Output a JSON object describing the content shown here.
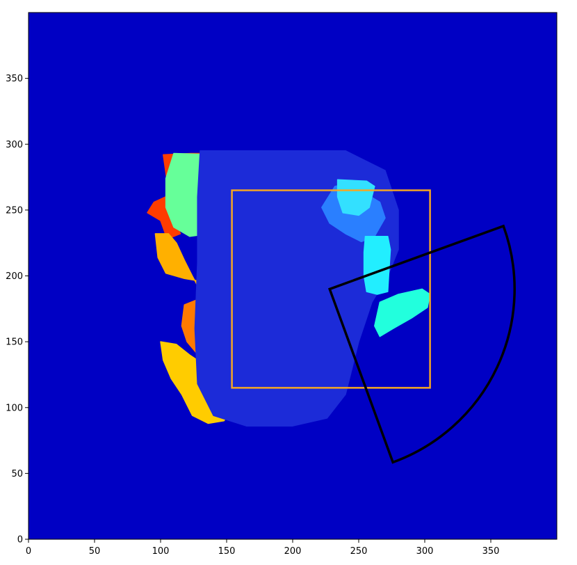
{
  "chart_data": {
    "type": "heatmap",
    "title": "",
    "xlabel": "",
    "ylabel": "",
    "xlim": [
      0,
      400
    ],
    "ylim": [
      0,
      400
    ],
    "x_ticks": [
      0,
      50,
      100,
      150,
      200,
      250,
      300,
      350
    ],
    "y_ticks": [
      0,
      50,
      100,
      150,
      200,
      250,
      300,
      350
    ],
    "colormap": "jet",
    "background_color": "#0000c4",
    "grid": false,
    "regions": [
      {
        "name": "chair-back",
        "points": [
          [
            102,
            292
          ],
          [
            123,
            293
          ],
          [
            148,
            293
          ],
          [
            155,
            280
          ],
          [
            152,
            262
          ],
          [
            140,
            252
          ],
          [
            132,
            256
          ],
          [
            118,
            250
          ],
          [
            108,
            262
          ],
          [
            95,
            256
          ],
          [
            90,
            248
          ],
          [
            100,
            242
          ],
          [
            105,
            228
          ],
          [
            115,
            232
          ],
          [
            108,
            250
          ]
        ],
        "color": "#ff3c00"
      },
      {
        "name": "seat-top",
        "points": [
          [
            110,
            293
          ],
          [
            146,
            292
          ],
          [
            152,
            282
          ],
          [
            151,
            262
          ],
          [
            146,
            245
          ],
          [
            137,
            232
          ],
          [
            122,
            230
          ],
          [
            110,
            237
          ],
          [
            104,
            252
          ],
          [
            104,
            274
          ]
        ],
        "color": "#66ff99"
      },
      {
        "name": "chair-column",
        "points": [
          [
            96,
            232
          ],
          [
            106,
            232
          ],
          [
            112,
            225
          ],
          [
            118,
            212
          ],
          [
            124,
            200
          ],
          [
            132,
            185
          ],
          [
            142,
            178
          ],
          [
            152,
            186
          ],
          [
            163,
            192
          ],
          [
            170,
            198
          ],
          [
            160,
            202
          ],
          [
            146,
            198
          ],
          [
            130,
            196
          ],
          [
            118,
            198
          ],
          [
            104,
            202
          ],
          [
            98,
            214
          ]
        ],
        "color": "#ffb000"
      },
      {
        "name": "orange-seat",
        "points": [
          [
            118,
            178
          ],
          [
            138,
            186
          ],
          [
            160,
            184
          ],
          [
            172,
            172
          ],
          [
            178,
            160
          ],
          [
            176,
            150
          ],
          [
            168,
            140
          ],
          [
            158,
            125
          ],
          [
            150,
            122
          ],
          [
            140,
            130
          ],
          [
            130,
            138
          ],
          [
            120,
            150
          ],
          [
            116,
            162
          ]
        ],
        "color": "#ff7a00"
      },
      {
        "name": "lower-legs",
        "points": [
          [
            100,
            150
          ],
          [
            112,
            148
          ],
          [
            122,
            140
          ],
          [
            134,
            132
          ],
          [
            142,
            122
          ],
          [
            150,
            112
          ],
          [
            154,
            100
          ],
          [
            148,
            90
          ],
          [
            136,
            88
          ],
          [
            124,
            94
          ],
          [
            116,
            110
          ],
          [
            108,
            122
          ],
          [
            102,
            136
          ]
        ],
        "color": "#ffcc00"
      },
      {
        "name": "dim-box",
        "points": [
          [
            130,
            295
          ],
          [
            240,
            295
          ],
          [
            270,
            280
          ],
          [
            280,
            250
          ],
          [
            280,
            220
          ],
          [
            272,
            200
          ],
          [
            260,
            180
          ],
          [
            250,
            150
          ],
          [
            240,
            110
          ],
          [
            226,
            92
          ],
          [
            200,
            86
          ],
          [
            165,
            86
          ],
          [
            140,
            94
          ],
          [
            128,
            118
          ],
          [
            126,
            160
          ],
          [
            128,
            210
          ],
          [
            128,
            260
          ]
        ],
        "color": "#1c2bd8"
      },
      {
        "name": "blue-object",
        "points": [
          [
            222,
            252
          ],
          [
            232,
            268
          ],
          [
            244,
            270
          ],
          [
            256,
            262
          ],
          [
            266,
            256
          ],
          [
            270,
            244
          ],
          [
            262,
            230
          ],
          [
            252,
            226
          ],
          [
            240,
            232
          ],
          [
            228,
            240
          ]
        ],
        "color": "#2a7fff"
      },
      {
        "name": "small-cyan-box",
        "points": [
          [
            234,
            273
          ],
          [
            256,
            272
          ],
          [
            262,
            268
          ],
          [
            258,
            252
          ],
          [
            250,
            246
          ],
          [
            238,
            248
          ],
          [
            234,
            260
          ]
        ],
        "color": "#33e0ff"
      },
      {
        "name": "tall-cyan-box",
        "points": [
          [
            255,
            230
          ],
          [
            272,
            230
          ],
          [
            274,
            220
          ],
          [
            273,
            205
          ],
          [
            272,
            188
          ],
          [
            264,
            186
          ],
          [
            256,
            188
          ],
          [
            254,
            200
          ],
          [
            254,
            218
          ]
        ],
        "color": "#22eeff"
      },
      {
        "name": "right-fragment",
        "points": [
          [
            266,
            180
          ],
          [
            280,
            186
          ],
          [
            298,
            190
          ],
          [
            304,
            186
          ],
          [
            302,
            176
          ],
          [
            290,
            168
          ],
          [
            276,
            160
          ],
          [
            266,
            154
          ],
          [
            262,
            162
          ]
        ],
        "color": "#22ffdd"
      }
    ],
    "rectangle": {
      "x_min": 154,
      "x_max": 304,
      "y_min": 115,
      "y_max": 265,
      "color": "#f5a623"
    },
    "sector": {
      "center": [
        228,
        190
      ],
      "radius": 140,
      "start_angle_deg": -70,
      "end_angle_deg": 20,
      "color": "#000000"
    }
  }
}
